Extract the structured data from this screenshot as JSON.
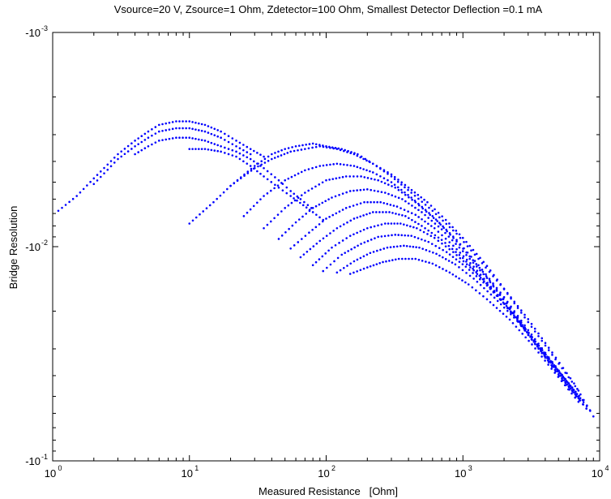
{
  "chart_data": {
    "type": "scatter",
    "title": "Vsource=20 V, Zsource=1 Ohm, Zdetector=100 Ohm, Smallest Detector Deflection =0.1 mA",
    "xlabel": "Measured Resistance   [Ohm]",
    "ylabel": "Bridge Resolution",
    "xscale": "log",
    "yscale": "log",
    "xlim": [
      1,
      10000
    ],
    "ylim": [
      -0.001,
      -0.1
    ],
    "y_axis_reversed": true,
    "grid": false,
    "legend": "none",
    "marker_color": "#0000ff",
    "x_ticks": [
      {
        "base": "10",
        "exp": "0"
      },
      {
        "base": "10",
        "exp": "1"
      },
      {
        "base": "10",
        "exp": "2"
      },
      {
        "base": "10",
        "exp": "3"
      },
      {
        "base": "10",
        "exp": "4"
      }
    ],
    "y_ticks": [
      {
        "base": "-10",
        "exp": "-3"
      },
      {
        "base": "-10",
        "exp": "-2"
      },
      {
        "base": "-10",
        "exp": "-1"
      }
    ],
    "series": [
      {
        "points": [
          [
            1.1,
            -0.0068
          ],
          [
            1.5,
            -0.0058
          ],
          [
            2,
            -0.0048
          ],
          [
            3,
            -0.0037
          ],
          [
            4,
            -0.0032
          ],
          [
            5,
            -0.0029
          ],
          [
            6,
            -0.0027
          ],
          [
            8,
            -0.0026
          ],
          [
            10,
            -0.0026
          ],
          [
            13,
            -0.0027
          ],
          [
            17,
            -0.0029
          ],
          [
            22,
            -0.0032
          ],
          [
            28,
            -0.0035
          ],
          [
            35,
            -0.0038
          ]
        ]
      },
      {
        "points": [
          [
            2,
            -0.0051
          ],
          [
            3,
            -0.0039
          ],
          [
            4,
            -0.0034
          ],
          [
            5,
            -0.0031
          ],
          [
            6,
            -0.0029
          ],
          [
            8,
            -0.0028
          ],
          [
            10,
            -0.0028
          ],
          [
            13,
            -0.0029
          ],
          [
            17,
            -0.0031
          ],
          [
            22,
            -0.0034
          ],
          [
            28,
            -0.0037
          ]
        ]
      },
      {
        "points": [
          [
            4,
            -0.0037
          ],
          [
            5,
            -0.0034
          ],
          [
            6,
            -0.0032
          ],
          [
            8,
            -0.0031
          ],
          [
            10,
            -0.0031
          ],
          [
            13,
            -0.0032
          ],
          [
            17,
            -0.0034
          ],
          [
            22,
            -0.0036
          ],
          [
            28,
            -0.0039
          ],
          [
            35,
            -0.0043
          ],
          [
            45,
            -0.0049
          ],
          [
            55,
            -0.0055
          ],
          [
            65,
            -0.006
          ],
          [
            78,
            -0.0066
          ]
        ]
      },
      {
        "points": [
          [
            10,
            -0.0035
          ],
          [
            13,
            -0.0035
          ],
          [
            17,
            -0.0036
          ],
          [
            22,
            -0.0038
          ],
          [
            28,
            -0.0042
          ],
          [
            35,
            -0.0047
          ],
          [
            45,
            -0.0053
          ],
          [
            55,
            -0.0058
          ],
          [
            68,
            -0.0064
          ],
          [
            80,
            -0.0069
          ],
          [
            95,
            -0.0075
          ]
        ]
      },
      {
        "points": [
          [
            20,
            -0.0052
          ],
          [
            30,
            -0.0042
          ],
          [
            40,
            -0.0037
          ],
          [
            50,
            -0.0035
          ],
          [
            60,
            -0.0034
          ],
          [
            80,
            -0.0033
          ],
          [
            100,
            -0.0034
          ],
          [
            130,
            -0.0035
          ],
          [
            170,
            -0.0037
          ],
          [
            220,
            -0.0041
          ],
          [
            300,
            -0.0046
          ],
          [
            400,
            -0.0053
          ],
          [
            550,
            -0.0062
          ],
          [
            750,
            -0.0075
          ],
          [
            1000,
            -0.0091
          ],
          [
            1500,
            -0.0123
          ],
          [
            2000,
            -0.0157
          ],
          [
            3000,
            -0.0218
          ],
          [
            4500,
            -0.0312
          ],
          [
            6500,
            -0.0435
          ],
          [
            9000,
            -0.062
          ]
        ]
      },
      {
        "points": [
          [
            10,
            -0.0078
          ],
          [
            15,
            -0.0062
          ],
          [
            20,
            -0.0052
          ],
          [
            30,
            -0.0043
          ],
          [
            40,
            -0.0039
          ],
          [
            55,
            -0.0036
          ],
          [
            70,
            -0.0035
          ],
          [
            90,
            -0.0034
          ],
          [
            120,
            -0.0035
          ],
          [
            160,
            -0.0037
          ],
          [
            220,
            -0.0041
          ],
          [
            300,
            -0.0047
          ],
          [
            420,
            -0.0056
          ],
          [
            600,
            -0.0068
          ],
          [
            900,
            -0.0087
          ],
          [
            1300,
            -0.0114
          ],
          [
            2000,
            -0.0158
          ],
          [
            3000,
            -0.0225
          ],
          [
            4500,
            -0.032
          ],
          [
            7000,
            -0.047
          ]
        ]
      },
      {
        "points": [
          [
            25,
            -0.0072
          ],
          [
            35,
            -0.0058
          ],
          [
            50,
            -0.0049
          ],
          [
            70,
            -0.0044
          ],
          [
            90,
            -0.0042
          ],
          [
            120,
            -0.0041
          ],
          [
            160,
            -0.0042
          ],
          [
            220,
            -0.0045
          ],
          [
            300,
            -0.005
          ],
          [
            420,
            -0.0059
          ],
          [
            600,
            -0.0072
          ],
          [
            900,
            -0.0093
          ],
          [
            1300,
            -0.0122
          ],
          [
            2000,
            -0.0172
          ],
          [
            3000,
            -0.0245
          ],
          [
            4500,
            -0.0345
          ],
          [
            7000,
            -0.05
          ]
        ]
      },
      {
        "points": [
          [
            35,
            -0.0082
          ],
          [
            50,
            -0.0066
          ],
          [
            70,
            -0.0056
          ],
          [
            100,
            -0.0049
          ],
          [
            140,
            -0.0047
          ],
          [
            180,
            -0.0047
          ],
          [
            240,
            -0.0049
          ],
          [
            320,
            -0.0053
          ],
          [
            450,
            -0.0062
          ],
          [
            650,
            -0.0076
          ],
          [
            950,
            -0.0098
          ],
          [
            1400,
            -0.0131
          ],
          [
            2100,
            -0.0183
          ],
          [
            3200,
            -0.0265
          ],
          [
            5000,
            -0.038
          ],
          [
            7500,
            -0.052
          ]
        ]
      },
      {
        "points": [
          [
            45,
            -0.0092
          ],
          [
            60,
            -0.0077
          ],
          [
            80,
            -0.0066
          ],
          [
            110,
            -0.0059
          ],
          [
            150,
            -0.0055
          ],
          [
            200,
            -0.0054
          ],
          [
            270,
            -0.0056
          ],
          [
            360,
            -0.006
          ],
          [
            500,
            -0.0069
          ],
          [
            700,
            -0.0083
          ],
          [
            1000,
            -0.0105
          ],
          [
            1500,
            -0.014
          ],
          [
            2200,
            -0.0193
          ],
          [
            3300,
            -0.0278
          ],
          [
            5000,
            -0.0395
          ],
          [
            8000,
            -0.057
          ]
        ]
      },
      {
        "points": [
          [
            55,
            -0.0102
          ],
          [
            75,
            -0.0086
          ],
          [
            100,
            -0.0074
          ],
          [
            140,
            -0.0066
          ],
          [
            190,
            -0.0062
          ],
          [
            250,
            -0.0062
          ],
          [
            330,
            -0.0065
          ],
          [
            450,
            -0.0071
          ],
          [
            620,
            -0.0082
          ],
          [
            850,
            -0.0099
          ],
          [
            1200,
            -0.0124
          ],
          [
            1800,
            -0.0168
          ],
          [
            2700,
            -0.0235
          ],
          [
            4000,
            -0.033
          ],
          [
            6000,
            -0.0465
          ]
        ]
      },
      {
        "points": [
          [
            65,
            -0.0112
          ],
          [
            90,
            -0.0094
          ],
          [
            120,
            -0.0082
          ],
          [
            160,
            -0.0074
          ],
          [
            220,
            -0.0069
          ],
          [
            290,
            -0.0069
          ],
          [
            380,
            -0.0072
          ],
          [
            500,
            -0.008
          ],
          [
            700,
            -0.0093
          ],
          [
            1000,
            -0.0113
          ],
          [
            1400,
            -0.0142
          ],
          [
            2000,
            -0.0185
          ],
          [
            3000,
            -0.0258
          ],
          [
            4500,
            -0.036
          ],
          [
            7000,
            -0.051
          ]
        ]
      },
      {
        "points": [
          [
            80,
            -0.0122
          ],
          [
            110,
            -0.0101
          ],
          [
            150,
            -0.0089
          ],
          [
            200,
            -0.0082
          ],
          [
            270,
            -0.0078
          ],
          [
            350,
            -0.0078
          ],
          [
            460,
            -0.0082
          ],
          [
            620,
            -0.0091
          ],
          [
            850,
            -0.0106
          ],
          [
            1200,
            -0.0129
          ],
          [
            1700,
            -0.0163
          ],
          [
            2500,
            -0.0218
          ],
          [
            3700,
            -0.0302
          ],
          [
            5500,
            -0.042
          ],
          [
            8000,
            -0.057
          ]
        ]
      },
      {
        "points": [
          [
            95,
            -0.013
          ],
          [
            130,
            -0.0109
          ],
          [
            180,
            -0.0097
          ],
          [
            240,
            -0.009
          ],
          [
            320,
            -0.0088
          ],
          [
            420,
            -0.0089
          ],
          [
            560,
            -0.0095
          ],
          [
            760,
            -0.0106
          ],
          [
            1050,
            -0.0124
          ],
          [
            1500,
            -0.0152
          ],
          [
            2200,
            -0.0196
          ],
          [
            3200,
            -0.0264
          ],
          [
            4800,
            -0.0368
          ],
          [
            7200,
            -0.051
          ]
        ]
      },
      {
        "points": [
          [
            120,
            -0.0132
          ],
          [
            160,
            -0.0117
          ],
          [
            210,
            -0.0107
          ],
          [
            280,
            -0.0101
          ],
          [
            370,
            -0.0099
          ],
          [
            480,
            -0.0101
          ],
          [
            640,
            -0.0108
          ],
          [
            880,
            -0.0121
          ],
          [
            1200,
            -0.0141
          ],
          [
            1700,
            -0.0173
          ],
          [
            2500,
            -0.0222
          ],
          [
            3700,
            -0.0298
          ],
          [
            5500,
            -0.041
          ],
          [
            8500,
            -0.058
          ]
        ]
      },
      {
        "points": [
          [
            150,
            -0.0134
          ],
          [
            200,
            -0.0125
          ],
          [
            260,
            -0.0118
          ],
          [
            340,
            -0.0114
          ],
          [
            450,
            -0.0114
          ],
          [
            600,
            -0.012
          ],
          [
            800,
            -0.0132
          ],
          [
            1100,
            -0.015
          ],
          [
            1500,
            -0.0176
          ],
          [
            2200,
            -0.0219
          ],
          [
            3200,
            -0.0286
          ],
          [
            4700,
            -0.0388
          ],
          [
            7000,
            -0.053
          ]
        ]
      }
    ]
  }
}
